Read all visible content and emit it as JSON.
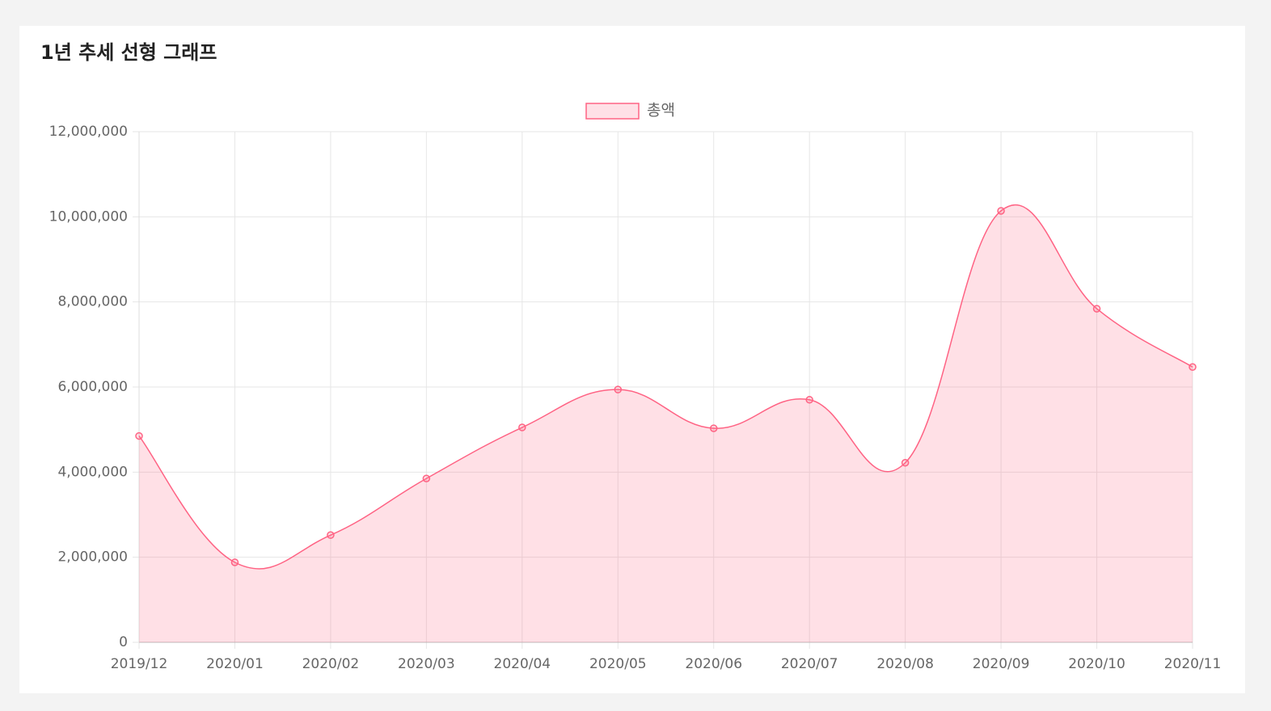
{
  "chart_data": {
    "type": "line",
    "title": "1년 추세 선형 그래프",
    "categories": [
      "2019/12",
      "2020/01",
      "2020/02",
      "2020/03",
      "2020/04",
      "2020/05",
      "2020/06",
      "2020/07",
      "2020/08",
      "2020/09",
      "2020/10",
      "2020/11"
    ],
    "series": [
      {
        "name": "총액",
        "color": "#ff6384",
        "values": [
          4850000,
          1880000,
          2520000,
          3850000,
          5050000,
          5940000,
          5030000,
          5700000,
          4220000,
          10140000,
          7840000,
          6470000
        ]
      }
    ],
    "fill": true,
    "grid": true,
    "legend": "top",
    "ylim": [
      0,
      12000000
    ],
    "yticks": [
      0,
      {
        "value": 2000000,
        "label": "2,000,000"
      },
      {
        "value": 4000000,
        "label": "4,000,000"
      },
      {
        "value": 6000000,
        "label": "6,000,000"
      },
      {
        "value": 8000000,
        "label": "8,000,000"
      },
      {
        "value": 10000000,
        "label": "10,000,000"
      },
      {
        "value": 12000000,
        "label": "12,000,000"
      }
    ]
  }
}
